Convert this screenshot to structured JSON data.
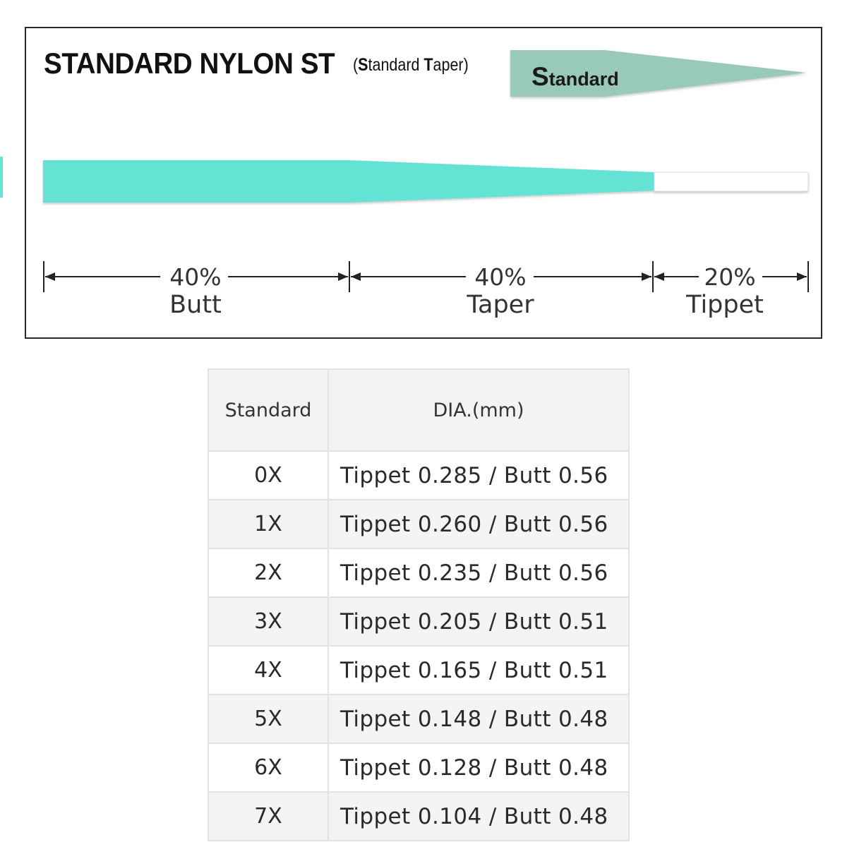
{
  "title": {
    "main": "STANDARD NYLON ST",
    "sub_open": "(",
    "sub_s": "S",
    "sub_mid": "tandard ",
    "sub_t": "T",
    "sub_end": "aper)"
  },
  "badge": {
    "label_initial": "S",
    "label_rest": "tandard",
    "color": "#98c9bb"
  },
  "leader": {
    "body_color": "#64e3d3",
    "tippet_color": "#ffffff"
  },
  "dimensions": [
    {
      "percent": "40%",
      "label": "Butt"
    },
    {
      "percent": "40%",
      "label": "Taper"
    },
    {
      "percent": "20%",
      "label": "Tippet"
    }
  ],
  "table": {
    "headers": [
      "Standard",
      "DIA.(mm)"
    ],
    "rows": [
      {
        "grade": "0X",
        "dia": "Tippet 0.285 / Butt 0.56"
      },
      {
        "grade": "1X",
        "dia": "Tippet 0.260 / Butt 0.56"
      },
      {
        "grade": "2X",
        "dia": "Tippet 0.235 / Butt 0.56"
      },
      {
        "grade": "3X",
        "dia": "Tippet 0.205 / Butt 0.51"
      },
      {
        "grade": "4X",
        "dia": "Tippet 0.165 / Butt 0.51"
      },
      {
        "grade": "5X",
        "dia": "Tippet 0.148 / Butt 0.48"
      },
      {
        "grade": "6X",
        "dia": "Tippet 0.128 / Butt 0.48"
      },
      {
        "grade": "7X",
        "dia": "Tippet 0.104 / Butt 0.48"
      }
    ]
  }
}
